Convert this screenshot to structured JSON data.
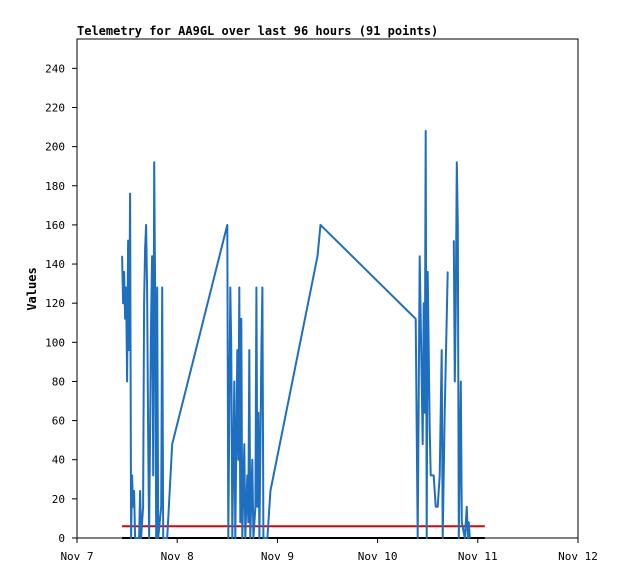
{
  "chart_data": {
    "type": "line",
    "title": "Telemetry for AA9GL over last 96 hours (91 points)",
    "xlabel": "",
    "ylabel": "Values",
    "x_ticks": [
      "Nov 7",
      "Nov 8",
      "Nov 9",
      "Nov 10",
      "Nov 11",
      "Nov 12"
    ],
    "y_ticks": [
      0,
      20,
      40,
      60,
      80,
      100,
      120,
      140,
      160,
      180,
      200,
      220,
      240
    ],
    "xlim_days": [
      0,
      5
    ],
    "ylim": [
      0,
      255
    ],
    "grid": false,
    "series": [
      {
        "name": "",
        "color": "#1f6fc0",
        "points": [
          [
            0.45,
            144
          ],
          [
            0.46,
            120
          ],
          [
            0.47,
            136
          ],
          [
            0.48,
            112
          ],
          [
            0.49,
            128
          ],
          [
            0.5,
            80
          ],
          [
            0.51,
            152
          ],
          [
            0.52,
            96
          ],
          [
            0.53,
            176
          ],
          [
            0.54,
            0
          ],
          [
            0.55,
            32
          ],
          [
            0.56,
            16
          ],
          [
            0.57,
            24
          ],
          [
            0.58,
            0
          ],
          [
            0.62,
            0
          ],
          [
            0.63,
            24
          ],
          [
            0.64,
            0
          ],
          [
            0.66,
            16
          ],
          [
            0.67,
            120
          ],
          [
            0.68,
            148
          ],
          [
            0.69,
            160
          ],
          [
            0.7,
            128
          ],
          [
            0.71,
            56
          ],
          [
            0.72,
            0
          ],
          [
            0.74,
            112
          ],
          [
            0.75,
            144
          ],
          [
            0.76,
            32
          ],
          [
            0.77,
            192
          ],
          [
            0.78,
            120
          ],
          [
            0.79,
            0
          ],
          [
            0.8,
            128
          ],
          [
            0.81,
            0
          ],
          [
            0.84,
            16
          ],
          [
            0.85,
            128
          ],
          [
            0.86,
            0
          ],
          [
            0.9,
            0
          ],
          [
            0.95,
            48
          ],
          [
            1.5,
            160
          ],
          [
            1.51,
            0
          ],
          [
            1.53,
            128
          ],
          [
            1.54,
            96
          ],
          [
            1.55,
            0
          ],
          [
            1.57,
            80
          ],
          [
            1.58,
            0
          ],
          [
            1.6,
            96
          ],
          [
            1.61,
            40
          ],
          [
            1.62,
            128
          ],
          [
            1.63,
            8
          ],
          [
            1.64,
            112
          ],
          [
            1.65,
            0
          ],
          [
            1.67,
            48
          ],
          [
            1.68,
            0
          ],
          [
            1.7,
            32
          ],
          [
            1.71,
            8
          ],
          [
            1.72,
            96
          ],
          [
            1.73,
            0
          ],
          [
            1.75,
            40
          ],
          [
            1.76,
            0
          ],
          [
            1.78,
            16
          ],
          [
            1.79,
            128
          ],
          [
            1.8,
            16
          ],
          [
            1.81,
            64
          ],
          [
            1.82,
            0
          ],
          [
            1.84,
            96
          ],
          [
            1.85,
            128
          ],
          [
            1.86,
            0
          ],
          [
            1.9,
            0
          ],
          [
            1.93,
            24
          ],
          [
            2.4,
            144
          ],
          [
            2.43,
            160
          ],
          [
            3.3,
            116
          ],
          [
            3.38,
            112
          ],
          [
            3.4,
            0
          ],
          [
            3.42,
            144
          ],
          [
            3.45,
            48
          ],
          [
            3.46,
            120
          ],
          [
            3.47,
            64
          ],
          [
            3.48,
            208
          ],
          [
            3.49,
            0
          ],
          [
            3.5,
            136
          ],
          [
            3.52,
            56
          ],
          [
            3.53,
            32
          ],
          [
            3.54,
            32
          ],
          [
            3.56,
            32
          ],
          [
            3.58,
            16
          ],
          [
            3.6,
            16
          ],
          [
            3.62,
            32
          ],
          [
            3.64,
            96
          ],
          [
            3.65,
            0
          ],
          [
            3.67,
            64
          ],
          [
            3.7,
            136
          ]
        ]
      },
      {
        "name": "",
        "color": "#1f6fc0",
        "points": [
          [
            3.76,
            152
          ],
          [
            3.77,
            80
          ],
          [
            3.78,
            120
          ],
          [
            3.79,
            192
          ],
          [
            3.8,
            160
          ],
          [
            3.81,
            0
          ],
          [
            3.83,
            80
          ],
          [
            3.84,
            8
          ],
          [
            3.87,
            0
          ],
          [
            3.89,
            16
          ],
          [
            3.9,
            0
          ],
          [
            3.91,
            8
          ],
          [
            3.92,
            0
          ]
        ]
      }
    ],
    "reference_lines": [
      {
        "y": 6,
        "x_from": 0.45,
        "x_to": 4.07,
        "color": "#e00000"
      },
      {
        "y": 0,
        "x_from": 0.45,
        "x_to": 4.07,
        "color": "#000000"
      }
    ]
  }
}
